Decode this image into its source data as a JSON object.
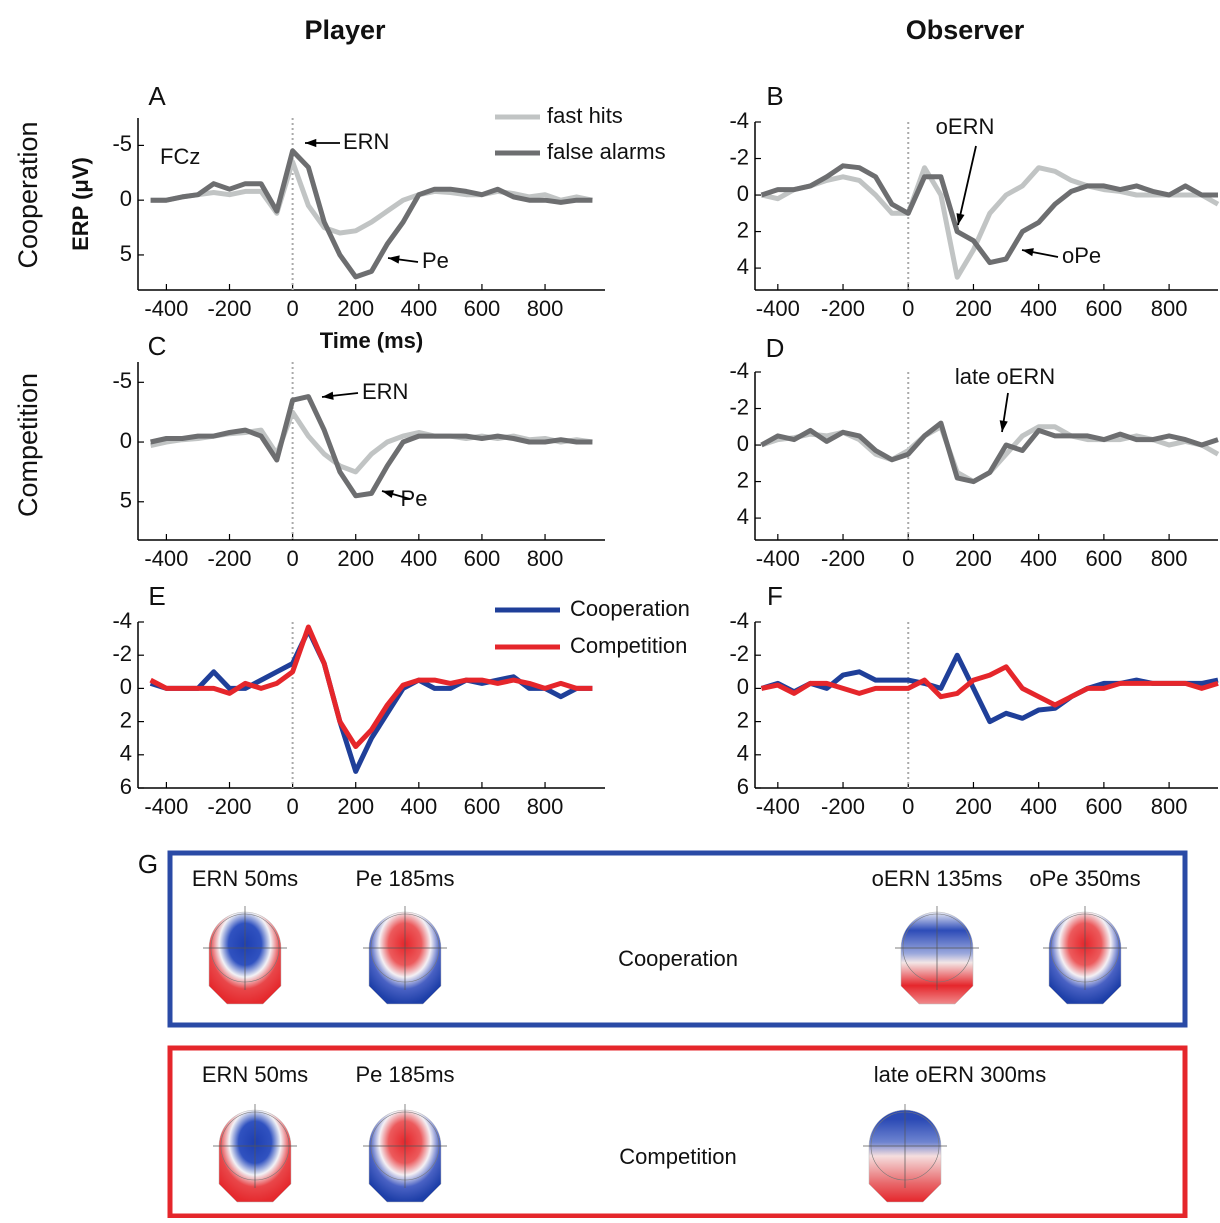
{
  "figure": {
    "columns": [
      "Player",
      "Observer"
    ],
    "rows": [
      "Cooperation",
      "Competition"
    ]
  },
  "chart_data": [
    {
      "type": "line",
      "title": "A",
      "y_label": "ERP (μV)",
      "x_label": "Time (ms)",
      "y_reversed": true,
      "legend": true,
      "annotations": [
        "FCz",
        "ERN",
        "Pe"
      ],
      "x": [
        -450,
        -400,
        -350,
        -300,
        -250,
        -200,
        -150,
        -100,
        -50,
        0,
        50,
        100,
        150,
        200,
        250,
        300,
        350,
        400,
        450,
        500,
        550,
        600,
        650,
        700,
        750,
        800,
        850,
        900,
        950
      ],
      "xlim": [
        -490,
        990
      ],
      "xticks": [
        -400,
        -200,
        0,
        200,
        400,
        600,
        800
      ],
      "ylim": [
        -7.5,
        8.2
      ],
      "yticks": [
        -5,
        0,
        5
      ],
      "series": [
        {
          "name": "fast hits",
          "color": "#c1c4c4",
          "values": [
            0,
            0,
            -0.3,
            -0.5,
            -0.7,
            -0.5,
            -0.8,
            -0.8,
            1.2,
            -3.5,
            0.5,
            2.5,
            3,
            2.8,
            2,
            1,
            0,
            -0.5,
            -0.8,
            -0.7,
            -0.5,
            -0.5,
            -0.8,
            -0.6,
            -0.3,
            -0.5,
            0,
            -0.3,
            0
          ]
        },
        {
          "name": "false alarms",
          "color": "#6d6e70",
          "values": [
            0,
            0,
            -0.3,
            -0.5,
            -1.5,
            -1,
            -1.5,
            -1.5,
            1,
            -4.5,
            -3,
            2,
            5,
            7,
            6.5,
            4,
            2,
            -0.5,
            -1,
            -1,
            -0.8,
            -0.5,
            -1,
            -0.3,
            0,
            0,
            0.2,
            0,
            0
          ]
        }
      ]
    },
    {
      "type": "line",
      "title": "B",
      "y_reversed": true,
      "annotations": [
        "oERN",
        "oPe"
      ],
      "x": [
        -450,
        -400,
        -350,
        -300,
        -250,
        -200,
        -150,
        -100,
        -50,
        0,
        50,
        100,
        150,
        200,
        250,
        300,
        350,
        400,
        450,
        500,
        550,
        600,
        650,
        700,
        750,
        800,
        850,
        900,
        950
      ],
      "xlim": [
        -470,
        950
      ],
      "xticks": [
        -400,
        -200,
        0,
        200,
        400,
        600,
        800
      ],
      "ylim": [
        -4,
        5.2
      ],
      "yticks": [
        -4,
        -2,
        0,
        2,
        4
      ],
      "series": [
        {
          "color": "#c1c4c4",
          "values": [
            0,
            0.2,
            -0.3,
            -0.5,
            -0.8,
            -1,
            -0.8,
            0,
            1,
            1,
            -1.5,
            0,
            4.5,
            3,
            1,
            0,
            -0.5,
            -1.5,
            -1.3,
            -0.8,
            -0.5,
            -0.3,
            -0.2,
            0,
            0,
            0,
            0,
            0,
            0.5
          ]
        },
        {
          "color": "#6d6e70",
          "values": [
            0,
            -0.3,
            -0.3,
            -0.5,
            -1,
            -1.6,
            -1.5,
            -1,
            0.5,
            1,
            -1,
            -1,
            2,
            2.5,
            3.7,
            3.5,
            2,
            1.5,
            0.5,
            -0.2,
            -0.5,
            -0.5,
            -0.3,
            -0.5,
            -0.2,
            0,
            -0.5,
            0,
            0
          ]
        }
      ]
    },
    {
      "type": "line",
      "title": "C",
      "y_reversed": true,
      "annotations": [
        "ERN",
        "Pe"
      ],
      "x": [
        -450,
        -400,
        -350,
        -300,
        -250,
        -200,
        -150,
        -100,
        -50,
        0,
        50,
        100,
        150,
        200,
        250,
        300,
        350,
        400,
        450,
        500,
        550,
        600,
        650,
        700,
        750,
        800,
        850,
        900,
        950
      ],
      "xlim": [
        -490,
        990
      ],
      "xticks": [
        -400,
        -200,
        0,
        200,
        400,
        600,
        800
      ],
      "ylim": [
        -6.7,
        8.2
      ],
      "yticks": [
        -5,
        0,
        5
      ],
      "series": [
        {
          "color": "#c1c4c4",
          "values": [
            0.3,
            0,
            -0.2,
            -0.3,
            -0.5,
            -0.7,
            -0.8,
            -1,
            1,
            -2.5,
            -0.5,
            1,
            2,
            2.5,
            1,
            0,
            -0.5,
            -0.8,
            -0.5,
            -0.5,
            -0.3,
            -0.5,
            -0.3,
            -0.5,
            -0.2,
            -0.3,
            0,
            -0.2,
            0
          ]
        },
        {
          "color": "#6d6e70",
          "values": [
            0,
            -0.3,
            -0.3,
            -0.5,
            -0.5,
            -0.8,
            -1,
            -0.5,
            1.5,
            -3.5,
            -3.8,
            -1,
            2.5,
            4.5,
            4.3,
            2,
            0,
            -0.5,
            -0.5,
            -0.5,
            -0.5,
            -0.3,
            -0.5,
            -0.3,
            0,
            0,
            -0.2,
            0,
            0
          ]
        }
      ]
    },
    {
      "type": "line",
      "title": "D",
      "y_reversed": true,
      "annotations": [
        "late oERN"
      ],
      "x": [
        -450,
        -400,
        -350,
        -300,
        -250,
        -200,
        -150,
        -100,
        -50,
        0,
        50,
        100,
        150,
        200,
        250,
        300,
        350,
        400,
        450,
        500,
        550,
        600,
        650,
        700,
        750,
        800,
        850,
        900,
        950
      ],
      "xlim": [
        -470,
        950
      ],
      "xticks": [
        -400,
        -200,
        0,
        200,
        400,
        600,
        800
      ],
      "ylim": [
        -4,
        5.2
      ],
      "yticks": [
        -4,
        -2,
        0,
        2,
        4
      ],
      "series": [
        {
          "color": "#c1c4c4",
          "values": [
            0,
            -0.3,
            -0.4,
            -0.6,
            -0.5,
            -0.7,
            -0.3,
            0.5,
            0.8,
            0.3,
            -0.5,
            -1,
            1.5,
            2,
            1.5,
            0.5,
            -0.5,
            -1,
            -1,
            -0.5,
            -0.3,
            -0.3,
            -0.3,
            -0.5,
            -0.3,
            0,
            -0.2,
            0,
            0.5
          ]
        },
        {
          "color": "#6d6e70",
          "values": [
            0,
            -0.5,
            -0.3,
            -0.8,
            -0.2,
            -0.7,
            -0.5,
            0.3,
            0.8,
            0.5,
            -0.5,
            -1.2,
            1.8,
            2,
            1.5,
            0,
            0.3,
            -0.8,
            -0.5,
            -0.5,
            -0.5,
            -0.3,
            -0.6,
            -0.3,
            -0.3,
            -0.5,
            -0.3,
            0,
            -0.3
          ]
        }
      ]
    },
    {
      "type": "line",
      "title": "E",
      "y_reversed": true,
      "legend": true,
      "x": [
        -450,
        -400,
        -350,
        -300,
        -250,
        -200,
        -150,
        -100,
        -50,
        0,
        50,
        100,
        150,
        200,
        250,
        300,
        350,
        400,
        450,
        500,
        550,
        600,
        650,
        700,
        750,
        800,
        850,
        900,
        950
      ],
      "xlim": [
        -490,
        990
      ],
      "xticks": [
        -400,
        -200,
        0,
        200,
        400,
        600,
        800
      ],
      "ylim": [
        -4,
        6
      ],
      "yticks": [
        -4,
        -2,
        0,
        2,
        4,
        6
      ],
      "series": [
        {
          "name": "Cooperation",
          "color": "#1f3f99",
          "values": [
            -0.3,
            0,
            0,
            0,
            -1,
            0,
            0,
            -0.5,
            -1,
            -1.5,
            -3.5,
            -1.5,
            2,
            5,
            3,
            1.5,
            0,
            -0.5,
            0,
            0,
            -0.5,
            -0.3,
            -0.5,
            -0.7,
            0,
            0,
            0.5,
            0,
            0
          ]
        },
        {
          "name": "Competition",
          "color": "#e5262b",
          "values": [
            -0.5,
            0,
            0,
            0,
            0,
            0.3,
            -0.3,
            0,
            -0.3,
            -1,
            -3.7,
            -1.5,
            2,
            3.5,
            2.5,
            1,
            -0.2,
            -0.5,
            -0.5,
            -0.3,
            -0.5,
            -0.5,
            -0.3,
            -0.5,
            -0.3,
            0,
            -0.3,
            0,
            0
          ]
        }
      ]
    },
    {
      "type": "line",
      "title": "F",
      "y_reversed": true,
      "x": [
        -450,
        -400,
        -350,
        -300,
        -250,
        -200,
        -150,
        -100,
        -50,
        0,
        50,
        100,
        150,
        200,
        250,
        300,
        350,
        400,
        450,
        500,
        550,
        600,
        650,
        700,
        750,
        800,
        850,
        900,
        950
      ],
      "xlim": [
        -470,
        950
      ],
      "xticks": [
        -400,
        -200,
        0,
        200,
        400,
        600,
        800
      ],
      "ylim": [
        -4,
        6
      ],
      "yticks": [
        -4,
        -2,
        0,
        2,
        4,
        6
      ],
      "series": [
        {
          "color": "#1f3f99",
          "values": [
            0,
            -0.3,
            0.2,
            -0.3,
            0,
            -0.8,
            -1,
            -0.5,
            -0.5,
            -0.5,
            -0.3,
            0,
            -2,
            0,
            2,
            1.5,
            1.8,
            1.3,
            1.2,
            0.5,
            0,
            -0.3,
            -0.3,
            -0.5,
            -0.3,
            -0.3,
            -0.3,
            -0.3,
            -0.5
          ]
        },
        {
          "color": "#e5262b",
          "values": [
            0,
            -0.2,
            0.3,
            -0.3,
            -0.3,
            0,
            0.3,
            0,
            0,
            0,
            -0.5,
            0.5,
            0.3,
            -0.5,
            -0.8,
            -1.3,
            0,
            0.5,
            1,
            0.5,
            0,
            0,
            -0.3,
            -0.3,
            -0.3,
            -0.3,
            -0.3,
            0,
            -0.3
          ]
        }
      ]
    }
  ],
  "panel_g": {
    "label": "G",
    "groups": [
      {
        "condition": "Cooperation",
        "maps": [
          "ERN 50ms",
          "Pe 185ms",
          "oERN 135ms",
          "oPe 350ms"
        ]
      },
      {
        "condition": "Competition",
        "maps": [
          "ERN 50ms",
          "Pe 185ms",
          "late oERN 300ms"
        ]
      }
    ]
  }
}
